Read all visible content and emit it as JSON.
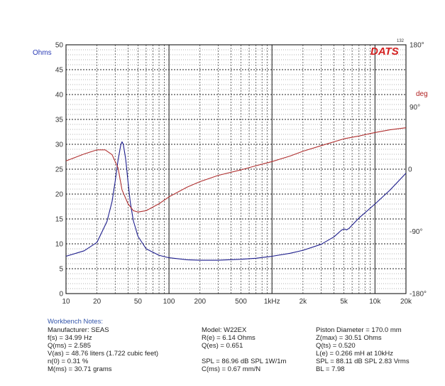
{
  "chart_data": {
    "type": "line",
    "logo": {
      "text": "DATS",
      "superscript": "132"
    },
    "x_axis": {
      "scale": "log",
      "range": [
        10,
        20000
      ],
      "tick_labels": [
        {
          "value": 10,
          "label": "10"
        },
        {
          "value": 20,
          "label": "20"
        },
        {
          "value": 50,
          "label": "50"
        },
        {
          "value": 100,
          "label": "100"
        },
        {
          "value": 200,
          "label": "200"
        },
        {
          "value": 500,
          "label": "500"
        },
        {
          "value": 1000,
          "label": "1kHz"
        },
        {
          "value": 2000,
          "label": "2k"
        },
        {
          "value": 5000,
          "label": "5k"
        },
        {
          "value": 10000,
          "label": "10k"
        },
        {
          "value": 20000,
          "label": "20k"
        }
      ]
    },
    "y_axis_left": {
      "label": "Ohms",
      "range": [
        0,
        50
      ],
      "ticks": [
        0,
        5,
        10,
        15,
        20,
        25,
        30,
        35,
        40,
        45,
        50
      ]
    },
    "y_axis_right": {
      "label": "deg",
      "range": [
        -180,
        180
      ],
      "tick_labels": [
        {
          "value": 180,
          "label": "180°"
        },
        {
          "value": 90,
          "label": "90°"
        },
        {
          "value": 0,
          "label": "0"
        },
        {
          "value": -90,
          "label": "-90°"
        },
        {
          "value": -180,
          "label": "-180°"
        }
      ]
    },
    "grid": true,
    "series": [
      {
        "axis": "left",
        "color": "#1c1c8c",
        "points": [
          [
            10,
            7.5
          ],
          [
            15,
            8.6
          ],
          [
            20,
            10.3
          ],
          [
            25,
            14.5
          ],
          [
            28,
            18.5
          ],
          [
            30,
            22.5
          ],
          [
            32,
            26.8
          ],
          [
            34,
            29.8
          ],
          [
            35,
            30.5
          ],
          [
            36,
            30.0
          ],
          [
            38,
            27
          ],
          [
            40,
            22.5
          ],
          [
            42,
            18.5
          ],
          [
            45,
            14.7
          ],
          [
            50,
            11.5
          ],
          [
            60,
            9.0
          ],
          [
            80,
            7.7
          ],
          [
            100,
            7.2
          ],
          [
            150,
            6.8
          ],
          [
            200,
            6.7
          ],
          [
            300,
            6.7
          ],
          [
            500,
            6.9
          ],
          [
            700,
            7.1
          ],
          [
            1000,
            7.5
          ],
          [
            1500,
            8.1
          ],
          [
            2000,
            8.7
          ],
          [
            3000,
            9.9
          ],
          [
            4000,
            11.4
          ],
          [
            4700,
            12.7
          ],
          [
            5000,
            13.0
          ],
          [
            5300,
            12.8
          ],
          [
            5600,
            13.1
          ],
          [
            7000,
            15.2
          ],
          [
            10000,
            18.0
          ],
          [
            14000,
            20.8
          ],
          [
            20000,
            24.2
          ]
        ]
      },
      {
        "axis": "right",
        "color": "#b03030",
        "points": [
          [
            10,
            12
          ],
          [
            15,
            22
          ],
          [
            20,
            28
          ],
          [
            24,
            28
          ],
          [
            28,
            21
          ],
          [
            32,
            2
          ],
          [
            35,
            -30
          ],
          [
            40,
            -50
          ],
          [
            45,
            -60
          ],
          [
            50,
            -62
          ],
          [
            60,
            -60
          ],
          [
            80,
            -50
          ],
          [
            100,
            -40
          ],
          [
            150,
            -26
          ],
          [
            200,
            -18
          ],
          [
            300,
            -9
          ],
          [
            500,
            -1
          ],
          [
            700,
            5
          ],
          [
            1000,
            11
          ],
          [
            1500,
            19
          ],
          [
            2000,
            26
          ],
          [
            3000,
            34
          ],
          [
            5000,
            44
          ],
          [
            7000,
            48
          ],
          [
            10000,
            53
          ],
          [
            14000,
            57
          ],
          [
            20000,
            60
          ]
        ]
      }
    ]
  },
  "notes": {
    "title": "Workbench Notes:",
    "col1": [
      "Manufacturer: SEAS",
      "f(s) = 34.99 Hz",
      "Q(ms) = 2.585",
      "V(as) = 48.76 liters  (1.722 cubic feet)",
      "n(0) = 0.31 %",
      "M(ms) = 30.71 grams"
    ],
    "col2": [
      "Model:  W22EX",
      "R(e) = 6.14 Ohms",
      "Q(es) = 0.651",
      "",
      "SPL = 86.96 dB SPL 1W/1m",
      "C(ms) = 0.67 mm/N"
    ],
    "col3": [
      "Piston Diameter = 170.0 mm",
      "Z(max) = 30.51 Ohms",
      "Q(ts) = 0.520",
      "L(e) = 0.266 mH at 10kHz",
      "SPL = 88.11 dB SPL 2.83 Vrms",
      "BL = 7.98"
    ]
  }
}
